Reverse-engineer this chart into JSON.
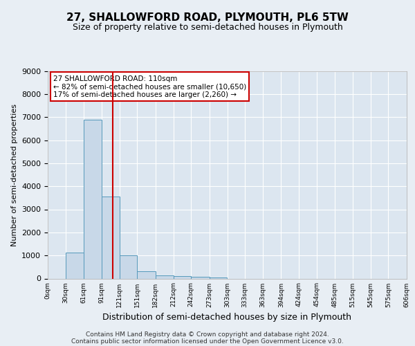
{
  "title": "27, SHALLOWFORD ROAD, PLYMOUTH, PL6 5TW",
  "subtitle": "Size of property relative to semi-detached houses in Plymouth",
  "xlabel": "Distribution of semi-detached houses by size in Plymouth",
  "ylabel": "Number of semi-detached properties",
  "footer_line1": "Contains HM Land Registry data © Crown copyright and database right 2024.",
  "footer_line2": "Contains public sector information licensed under the Open Government Licence v3.0.",
  "property_size": 110,
  "annotation_title": "27 SHALLOWFORD ROAD: 110sqm",
  "annotation_line1": "← 82% of semi-detached houses are smaller (10,650)",
  "annotation_line2": "17% of semi-detached houses are larger (2,260) →",
  "bin_edges": [
    0,
    30,
    61,
    91,
    121,
    151,
    182,
    212,
    242,
    273,
    303,
    333,
    363,
    394,
    424,
    454,
    485,
    515,
    545,
    575,
    606
  ],
  "bar_heights": [
    0,
    1130,
    6880,
    3560,
    1000,
    320,
    135,
    100,
    75,
    60,
    0,
    0,
    0,
    0,
    0,
    0,
    0,
    0,
    0,
    0
  ],
  "bar_color": "#c8d8e8",
  "bar_edge_color": "#5599bb",
  "vline_x": 110,
  "vline_color": "#cc0000",
  "ylim": [
    0,
    9000
  ],
  "yticks": [
    0,
    1000,
    2000,
    3000,
    4000,
    5000,
    6000,
    7000,
    8000,
    9000
  ],
  "bg_color": "#e8eef4",
  "plot_bg_color": "#dce6f0",
  "grid_color": "#ffffff",
  "annotation_box_color": "#ffffff",
  "annotation_border_color": "#cc0000",
  "title_fontsize": 11,
  "subtitle_fontsize": 9,
  "ylabel_fontsize": 8,
  "xlabel_fontsize": 9,
  "footer_fontsize": 6.5,
  "ytick_fontsize": 8,
  "xtick_fontsize": 6.5
}
